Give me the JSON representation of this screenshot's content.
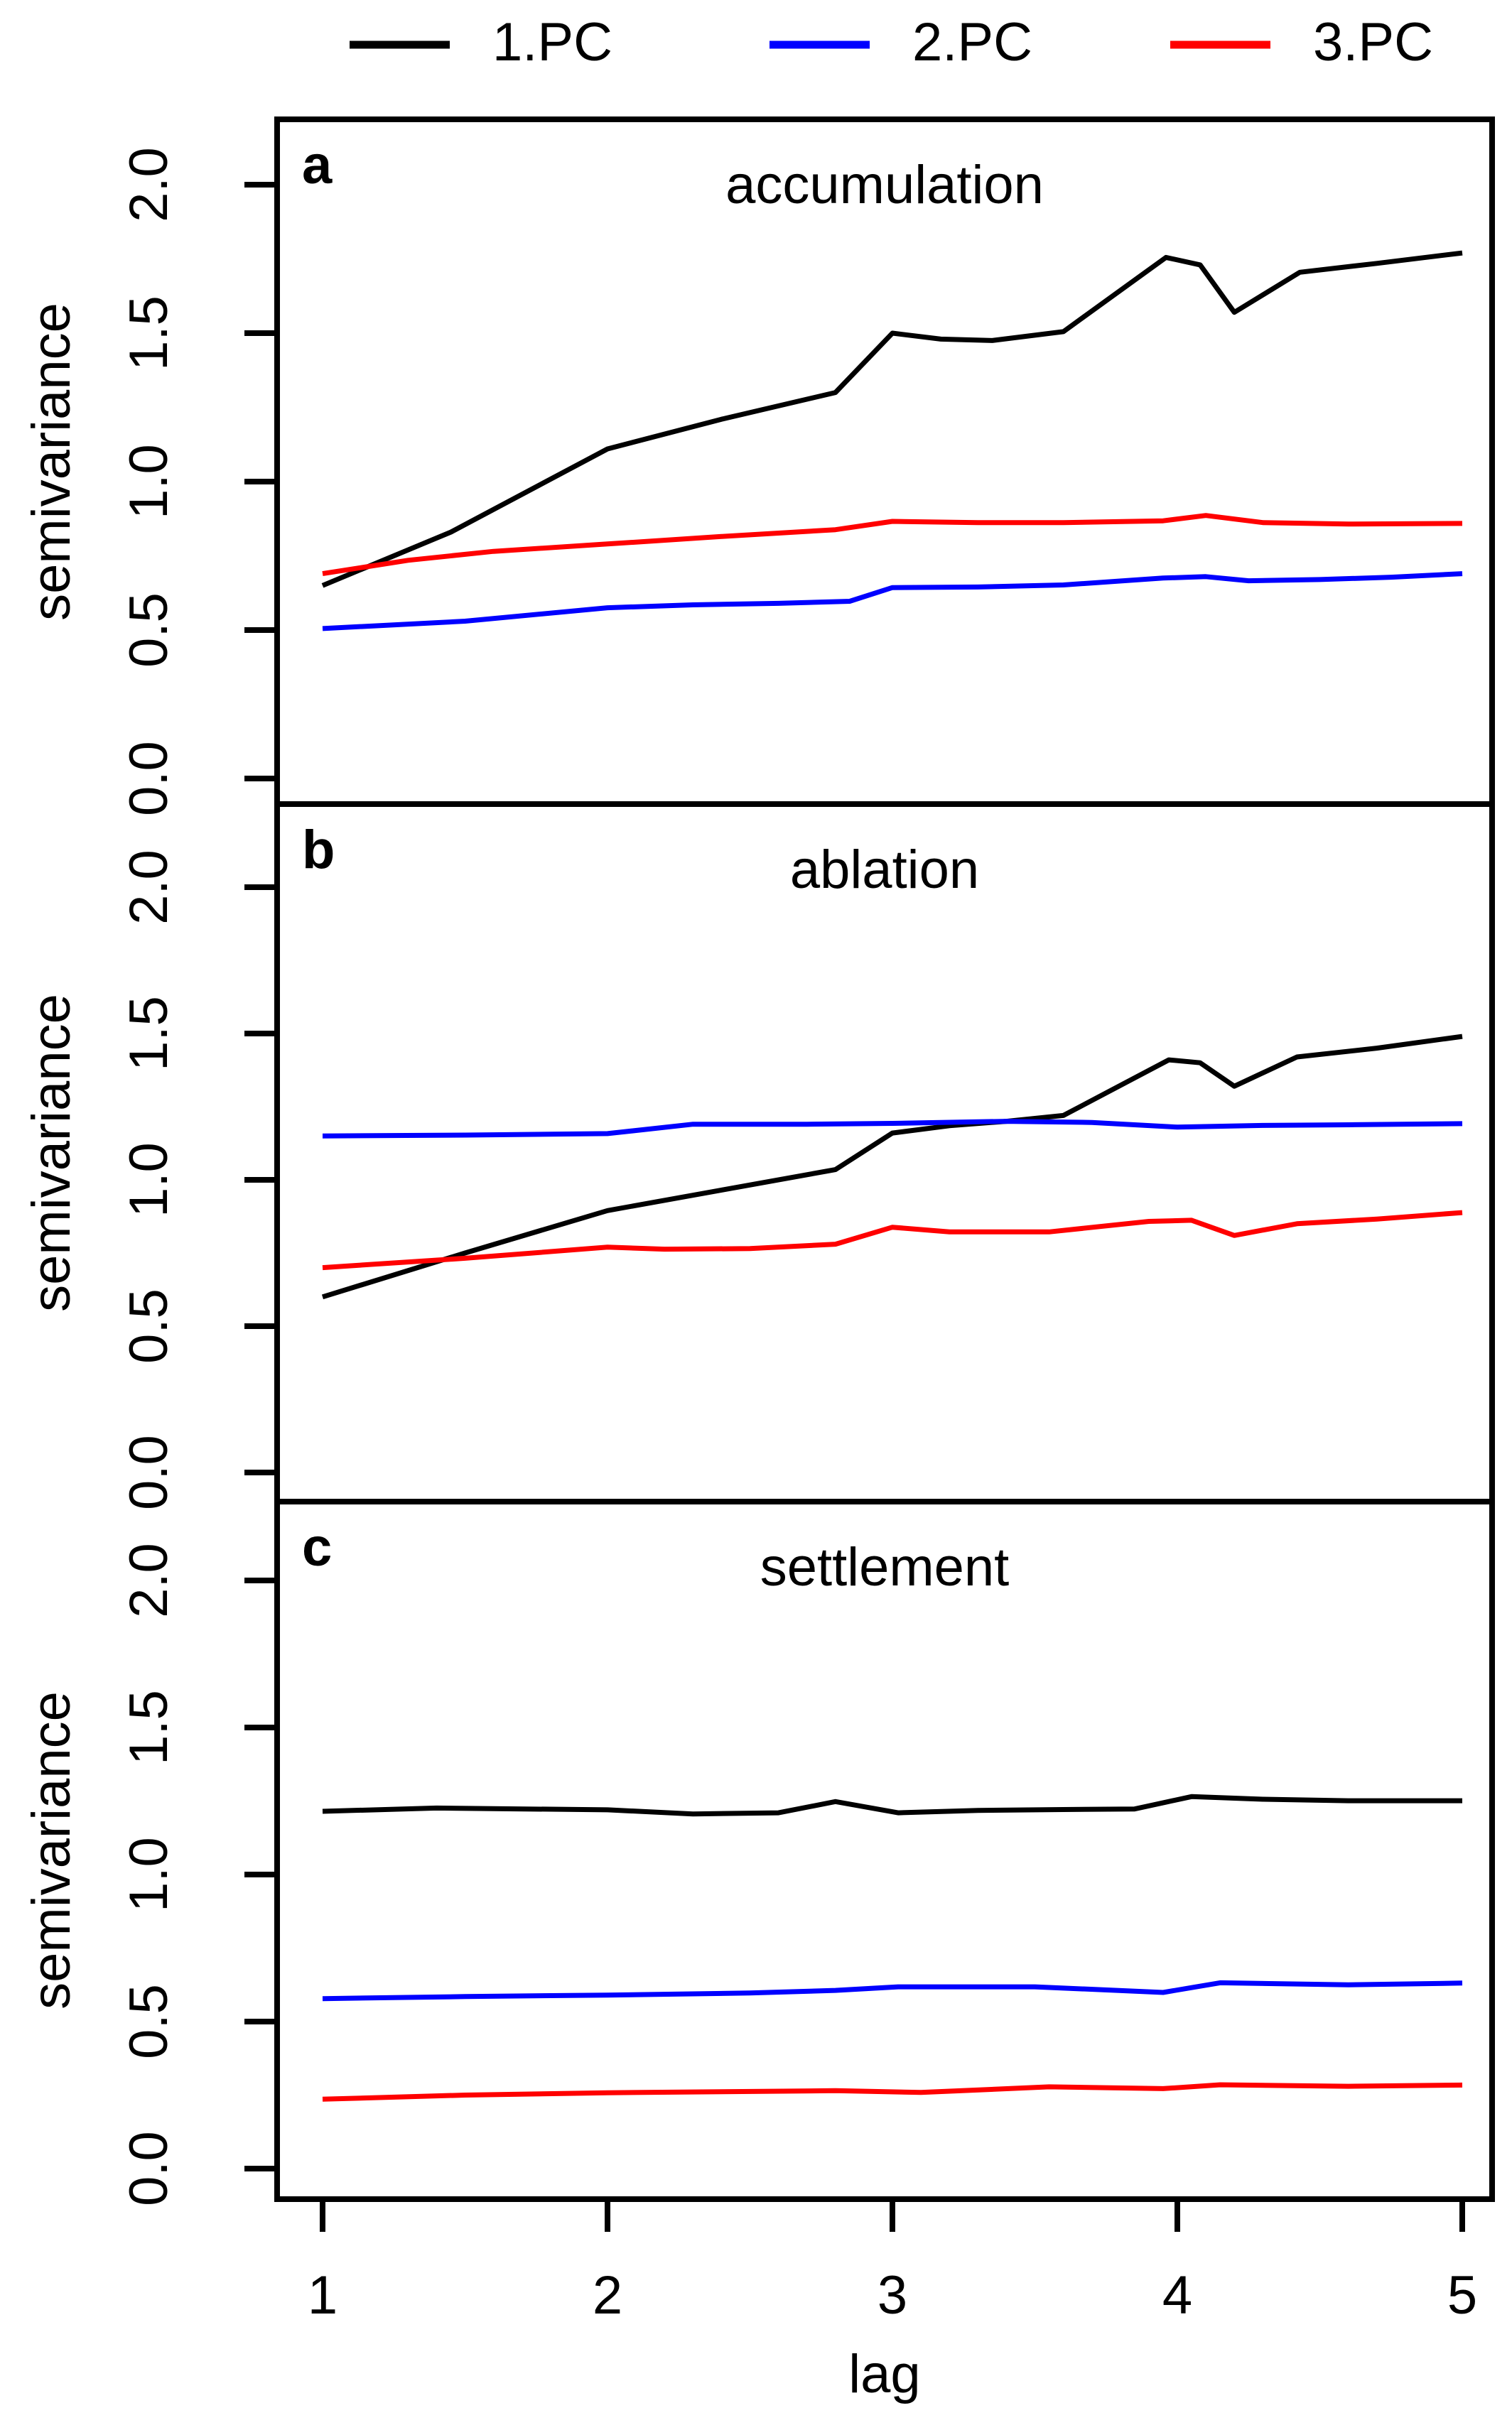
{
  "figure": {
    "background": "#ffffff",
    "legend": {
      "position": "top",
      "items": [
        {
          "label": "1.PC",
          "color": "#000000"
        },
        {
          "label": "2.PC",
          "color": "#0000ff"
        },
        {
          "label": "3.PC",
          "color": "#ff0000"
        }
      ]
    },
    "x_axis": {
      "label": "lag",
      "tick_labels": [
        "1",
        "2",
        "3",
        "4",
        "5"
      ]
    },
    "y_axis": {
      "label": "semivariance",
      "ticks": [
        "0.0",
        "0.5",
        "1.0",
        "1.5",
        "2.0"
      ]
    }
  },
  "chart_data": [
    {
      "type": "line",
      "panel_letter": "a",
      "title": "accumulation",
      "xlabel": "lag",
      "ylabel": "semivariance",
      "xlim": [
        1,
        5
      ],
      "ylim": [
        0,
        2.25
      ],
      "grid": false,
      "legend_position": "top",
      "series": [
        {
          "name": "1.PC",
          "color": "#000000",
          "points": [
            [
              1,
              0.65
            ],
            [
              1.45,
              0.83
            ],
            [
              2,
              1.11
            ],
            [
              2.4,
              1.21
            ],
            [
              2.8,
              1.3
            ],
            [
              3,
              1.5
            ],
            [
              3.17,
              1.48
            ],
            [
              3.35,
              1.475
            ],
            [
              3.6,
              1.505
            ],
            [
              3.96,
              1.755
            ],
            [
              4.08,
              1.73
            ],
            [
              4.2,
              1.57
            ],
            [
              4.43,
              1.705
            ],
            [
              4.7,
              1.735
            ],
            [
              5,
              1.77
            ]
          ]
        },
        {
          "name": "2.PC",
          "color": "#0000ff",
          "points": [
            [
              1,
              0.505
            ],
            [
              1.5,
              0.53
            ],
            [
              2,
              0.575
            ],
            [
              2.3,
              0.585
            ],
            [
              2.6,
              0.59
            ],
            [
              2.85,
              0.597
            ],
            [
              3,
              0.643
            ],
            [
              3.3,
              0.645
            ],
            [
              3.6,
              0.652
            ],
            [
              3.95,
              0.675
            ],
            [
              4.1,
              0.68
            ],
            [
              4.25,
              0.666
            ],
            [
              4.5,
              0.67
            ],
            [
              4.75,
              0.678
            ],
            [
              5,
              0.69
            ]
          ]
        },
        {
          "name": "3.PC",
          "color": "#ff0000",
          "points": [
            [
              1,
              0.69
            ],
            [
              1.3,
              0.735
            ],
            [
              1.6,
              0.765
            ],
            [
              2,
              0.79
            ],
            [
              2.4,
              0.815
            ],
            [
              2.8,
              0.838
            ],
            [
              3,
              0.866
            ],
            [
              3.3,
              0.862
            ],
            [
              3.6,
              0.862
            ],
            [
              3.95,
              0.868
            ],
            [
              4.1,
              0.886
            ],
            [
              4.3,
              0.862
            ],
            [
              4.6,
              0.857
            ],
            [
              5,
              0.859
            ]
          ]
        }
      ]
    },
    {
      "type": "line",
      "panel_letter": "b",
      "title": "ablation",
      "xlabel": "lag",
      "ylabel": "semivariance",
      "xlim": [
        1,
        5
      ],
      "ylim": [
        0,
        2.25
      ],
      "grid": false,
      "legend_position": "top",
      "series": [
        {
          "name": "1.PC",
          "color": "#000000",
          "points": [
            [
              1,
              0.6
            ],
            [
              1.5,
              0.75
            ],
            [
              2,
              0.895
            ],
            [
              2.4,
              0.965
            ],
            [
              2.8,
              1.035
            ],
            [
              3,
              1.16
            ],
            [
              3.2,
              1.185
            ],
            [
              3.4,
              1.2
            ],
            [
              3.6,
              1.22
            ],
            [
              3.97,
              1.41
            ],
            [
              4.08,
              1.4
            ],
            [
              4.2,
              1.32
            ],
            [
              4.42,
              1.42
            ],
            [
              4.7,
              1.45
            ],
            [
              5,
              1.49
            ]
          ]
        },
        {
          "name": "2.PC",
          "color": "#0000ff",
          "points": [
            [
              1,
              1.15
            ],
            [
              1.5,
              1.153
            ],
            [
              2,
              1.158
            ],
            [
              2.3,
              1.19
            ],
            [
              2.7,
              1.19
            ],
            [
              3,
              1.193
            ],
            [
              3.4,
              1.2
            ],
            [
              3.7,
              1.196
            ],
            [
              4,
              1.18
            ],
            [
              4.3,
              1.186
            ],
            [
              4.6,
              1.188
            ],
            [
              5,
              1.192
            ]
          ]
        },
        {
          "name": "3.PC",
          "color": "#ff0000",
          "points": [
            [
              1,
              0.7
            ],
            [
              1.5,
              0.732
            ],
            [
              2,
              0.77
            ],
            [
              2.2,
              0.763
            ],
            [
              2.5,
              0.765
            ],
            [
              2.8,
              0.78
            ],
            [
              3,
              0.838
            ],
            [
              3.2,
              0.822
            ],
            [
              3.55,
              0.822
            ],
            [
              3.9,
              0.858
            ],
            [
              4.05,
              0.862
            ],
            [
              4.2,
              0.81
            ],
            [
              4.42,
              0.85
            ],
            [
              4.7,
              0.866
            ],
            [
              5,
              0.888
            ]
          ]
        }
      ]
    },
    {
      "type": "line",
      "panel_letter": "c",
      "title": "settlement",
      "xlabel": "lag",
      "ylabel": "semivariance",
      "xlim": [
        1,
        5
      ],
      "ylim": [
        0,
        2.25
      ],
      "grid": false,
      "legend_position": "top",
      "series": [
        {
          "name": "1.PC",
          "color": "#000000",
          "points": [
            [
              1,
              1.215
            ],
            [
              1.4,
              1.226
            ],
            [
              2,
              1.22
            ],
            [
              2.3,
              1.206
            ],
            [
              2.6,
              1.21
            ],
            [
              2.8,
              1.248
            ],
            [
              3.02,
              1.21
            ],
            [
              3.3,
              1.218
            ],
            [
              3.6,
              1.221
            ],
            [
              3.85,
              1.223
            ],
            [
              4.05,
              1.265
            ],
            [
              4.3,
              1.256
            ],
            [
              4.6,
              1.251
            ],
            [
              5,
              1.251
            ]
          ]
        },
        {
          "name": "2.PC",
          "color": "#0000ff",
          "points": [
            [
              1,
              0.578
            ],
            [
              1.5,
              0.585
            ],
            [
              2,
              0.59
            ],
            [
              2.5,
              0.597
            ],
            [
              2.8,
              0.606
            ],
            [
              3.02,
              0.618
            ],
            [
              3.5,
              0.618
            ],
            [
              3.95,
              0.599
            ],
            [
              4.15,
              0.632
            ],
            [
              4.6,
              0.625
            ],
            [
              5,
              0.631
            ]
          ]
        },
        {
          "name": "3.PC",
          "color": "#ff0000",
          "points": [
            [
              1,
              0.236
            ],
            [
              1.5,
              0.25
            ],
            [
              2,
              0.258
            ],
            [
              2.8,
              0.265
            ],
            [
              3.1,
              0.259
            ],
            [
              3.55,
              0.278
            ],
            [
              3.95,
              0.272
            ],
            [
              4.15,
              0.285
            ],
            [
              4.6,
              0.28
            ],
            [
              5,
              0.284
            ]
          ]
        }
      ]
    }
  ]
}
